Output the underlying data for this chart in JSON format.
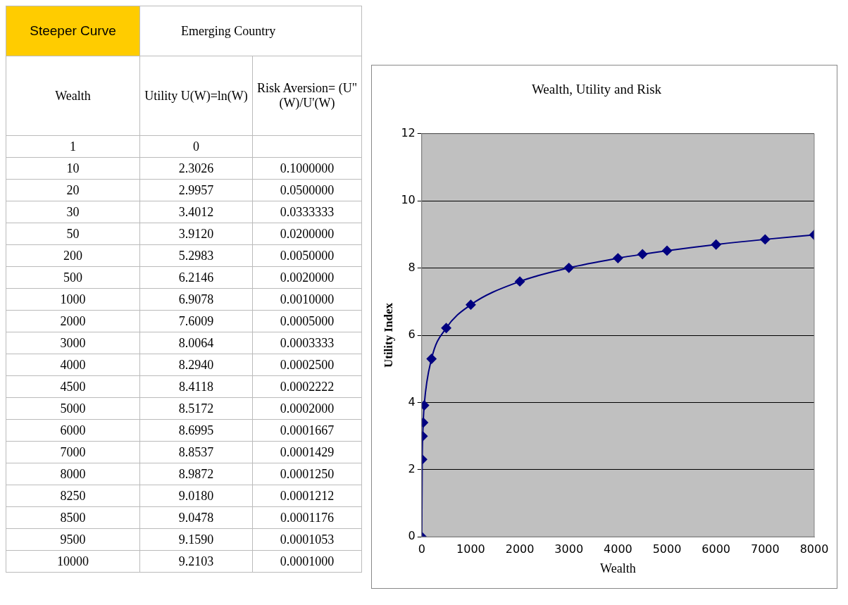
{
  "chart_data": [
    {
      "type": "other",
      "title": "Steeper Curve",
      "subtitle": "Emerging Country",
      "xlabel": "Wealth",
      "categories": [
        "1",
        "10",
        "20",
        "30",
        "50",
        "200",
        "500",
        "1000",
        "2000",
        "3000",
        "4000",
        "4500",
        "5000",
        "6000",
        "7000",
        "8000",
        "8250",
        "8500",
        "9500",
        "10000"
      ],
      "series": [
        {
          "name": "Utility U(W)=ln(W)",
          "values": [
            0,
            2.3026,
            2.9957,
            3.4012,
            3.912,
            5.2983,
            6.2146,
            6.9078,
            7.6009,
            8.0064,
            8.294,
            8.4118,
            8.5172,
            8.6995,
            8.8537,
            8.9872,
            9.018,
            9.0478,
            9.159,
            9.2103
          ],
          "value_labels": [
            "0",
            "2.3026",
            "2.9957",
            "3.4012",
            "3.9120",
            "5.2983",
            "6.2146",
            "6.9078",
            "7.6009",
            "8.0064",
            "8.2940",
            "8.4118",
            "8.5172",
            "8.6995",
            "8.8537",
            "8.9872",
            "9.0180",
            "9.0478",
            "9.1590",
            "9.2103"
          ]
        },
        {
          "name": "Risk Aversion= (U\"(W)/U'(W)",
          "values": [
            null,
            0.1,
            0.05,
            0.0333333,
            0.02,
            0.005,
            0.002,
            0.001,
            0.0005,
            0.0003333,
            0.00025,
            0.0002222,
            0.0002,
            0.0001667,
            0.0001429,
            0.000125,
            0.0001212,
            0.0001176,
            0.0001053,
            0.0001
          ],
          "value_labels": [
            null,
            "0.1000000",
            "0.0500000",
            "0.0333333",
            "0.0200000",
            "0.0050000",
            "0.0020000",
            "0.0010000",
            "0.0005000",
            "0.0003333",
            "0.0002500",
            "0.0002222",
            "0.0002000",
            "0.0001667",
            "0.0001429",
            "0.0001250",
            "0.0001212",
            "0.0001176",
            "0.0001053",
            "0.0001000"
          ]
        }
      ]
    },
    {
      "type": "line",
      "title": "Wealth, Utility and Risk",
      "xlabel": "Wealth",
      "ylabel": "Utility Index",
      "x": [
        1,
        10,
        20,
        30,
        50,
        200,
        500,
        1000,
        2000,
        3000,
        4000,
        4500,
        5000,
        6000,
        7000,
        8000
      ],
      "series": [
        {
          "color": "#000080",
          "values": [
            0,
            2.3026,
            2.9957,
            3.4012,
            3.912,
            5.2983,
            6.2146,
            6.9078,
            7.6009,
            8.0064,
            8.294,
            8.4118,
            8.5172,
            8.6995,
            8.8537,
            8.9872
          ]
        }
      ],
      "xlim": [
        0,
        8000
      ],
      "xticks": [
        0,
        1000,
        2000,
        3000,
        4000,
        5000,
        6000,
        7000,
        8000
      ],
      "ylim": [
        0,
        12
      ],
      "yticks": [
        0,
        2,
        4,
        6,
        8,
        10,
        12
      ],
      "grid": "y",
      "marker": "diamond",
      "legend": false
    }
  ]
}
